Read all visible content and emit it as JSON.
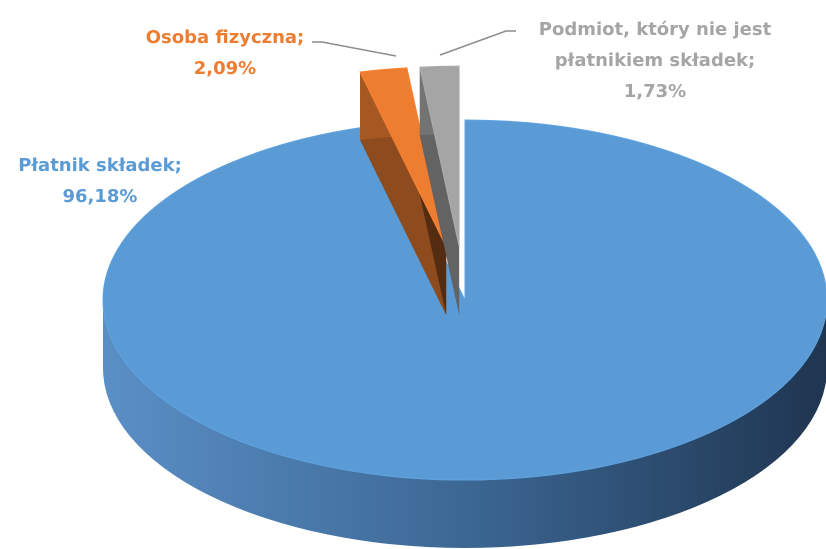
{
  "chart_data": {
    "type": "pie",
    "categories": [
      "Płatnik składek;",
      "Osoba fizyczna;",
      "Podmiot, który nie jest płatnikiem składek;"
    ],
    "values": [
      96.18,
      2.09,
      1.73
    ],
    "value_labels": [
      "96,18%",
      "2,09%",
      "1,73%"
    ],
    "colors": [
      "#5b9bd5",
      "#ed7d31",
      "#a5a5a5"
    ]
  }
}
